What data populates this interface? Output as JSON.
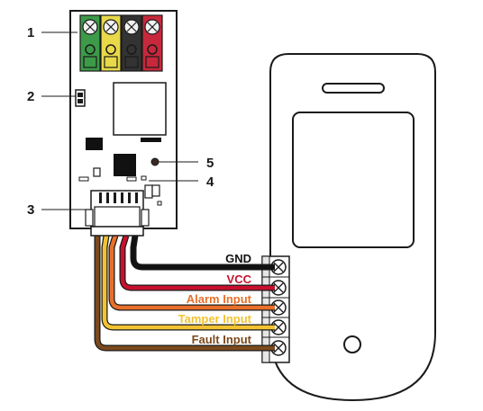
{
  "callouts": {
    "c1": "1",
    "c2": "2",
    "c3": "3",
    "c4": "4",
    "c5": "5"
  },
  "wires": [
    {
      "label": "GND",
      "color": "#111111"
    },
    {
      "label": "VCC",
      "color": "#c8102e"
    },
    {
      "label": "Alarm Input",
      "color": "#e8702a"
    },
    {
      "label": "Tamper Input",
      "color": "#f2c230"
    },
    {
      "label": "Fault Input",
      "color": "#7b4a1e"
    }
  ],
  "terminal_colors": [
    "#3c9a48",
    "#e8d84a",
    "#333333",
    "#c8283c"
  ]
}
